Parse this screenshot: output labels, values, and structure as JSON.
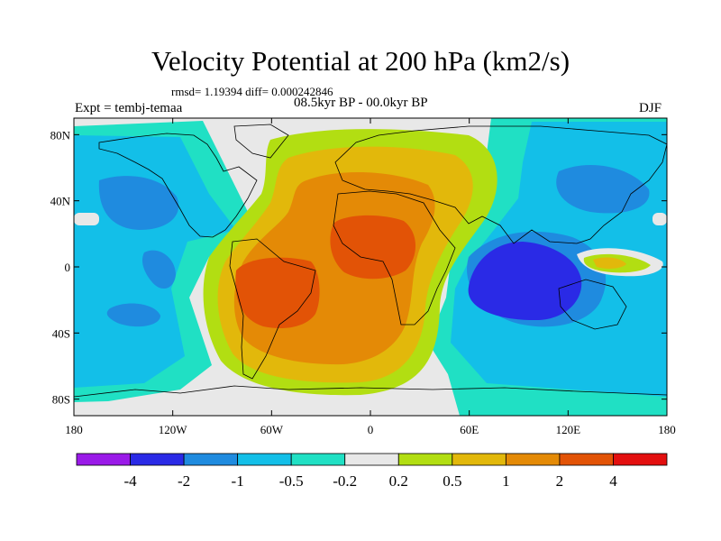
{
  "title": "Velocity Potential at 200 hPa (km2/s)",
  "stats_text": "rmsd= 1.19394 diff= 0.000242846",
  "left_label": "Expt = tembj-temaa",
  "center_label": "08.5kyr BP - 00.0kyr BP",
  "right_label": "DJF",
  "chart_data": {
    "type": "filled-contour map",
    "title": "Velocity Potential at 200 hPa (km2/s)",
    "units": "km2/s",
    "x_axis": {
      "range": [
        -180,
        180
      ],
      "ticks": [
        -180,
        -120,
        -60,
        0,
        60,
        120,
        180
      ],
      "tick_labels": [
        "180",
        "120W",
        "60W",
        "0",
        "60E",
        "120E",
        "180"
      ]
    },
    "y_axis": {
      "range": [
        -90,
        90
      ],
      "ticks": [
        80,
        40,
        0,
        -40,
        -80
      ],
      "tick_labels": [
        "80N",
        "40N",
        "0",
        "40S",
        "80S"
      ]
    },
    "contour_levels": [
      -4,
      -2,
      -1,
      -0.5,
      -0.2,
      0.2,
      0.5,
      1,
      2,
      4
    ],
    "colorbar": {
      "labels": [
        "-4",
        "-2",
        "-1",
        "-0.5",
        "-0.2",
        "0.2",
        "0.5",
        "1",
        "2",
        "4"
      ],
      "colors": [
        "#9a1ae8",
        "#2a2ae6",
        "#1f8bdf",
        "#13bfe8",
        "#20e0c4",
        "#e8e8e8",
        "#b2de12",
        "#e2b80b",
        "#e48a06",
        "#e25306",
        "#e30f0f"
      ]
    },
    "level_colors": {
      "lt_minus4": "#9a1ae8",
      "minus4_to_minus2": "#2a2ae6",
      "minus2_to_minus1": "#1f8bdf",
      "minus1_to_minus05": "#13bfe8",
      "minus05_to_minus02": "#20e0c4",
      "near_zero": "#e8e8e8",
      "p02_to_p05": "#b2de12",
      "p05_to_p1": "#e2b80b",
      "p1_to_p2": "#e48a06",
      "p2_to_p4": "#e25306",
      "gt_p4": "#e30f0f"
    },
    "features": [
      {
        "name": "South America maximum",
        "lon": -55,
        "lat": -15,
        "level": "p2_to_p4"
      },
      {
        "name": "Africa maximum",
        "lon": 15,
        "lat": 20,
        "level": "p2_to_p4"
      },
      {
        "name": "Indian Ocean minimum",
        "lon": 90,
        "lat": -10,
        "level": "minus4_to_minus2"
      },
      {
        "name": "North Pacific minimum",
        "lon": -150,
        "lat": 45,
        "level": "minus2_to_minus1"
      },
      {
        "name": "Western Pacific small maximum",
        "lon": 145,
        "lat": 0,
        "level": "p05_to_p1"
      }
    ]
  }
}
